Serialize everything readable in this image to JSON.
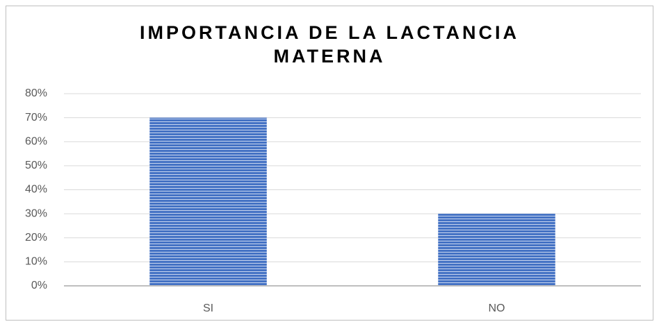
{
  "chart_data": {
    "type": "bar",
    "title": "IMPORTANCIA DE LA LACTANCIA MATERNA",
    "categories": [
      "SI",
      "NO"
    ],
    "values": [
      70,
      30
    ],
    "color": "#4472c4",
    "ylim": [
      0,
      80
    ],
    "yticks": [
      {
        "value": 0,
        "label": "0%"
      },
      {
        "value": 10,
        "label": "10%"
      },
      {
        "value": 20,
        "label": "20%"
      },
      {
        "value": 30,
        "label": "30%"
      },
      {
        "value": 40,
        "label": "40%"
      },
      {
        "value": 50,
        "label": "50%"
      },
      {
        "value": 60,
        "label": "60%"
      },
      {
        "value": 70,
        "label": "70%"
      },
      {
        "value": 80,
        "label": "80%"
      }
    ],
    "grid": true
  }
}
